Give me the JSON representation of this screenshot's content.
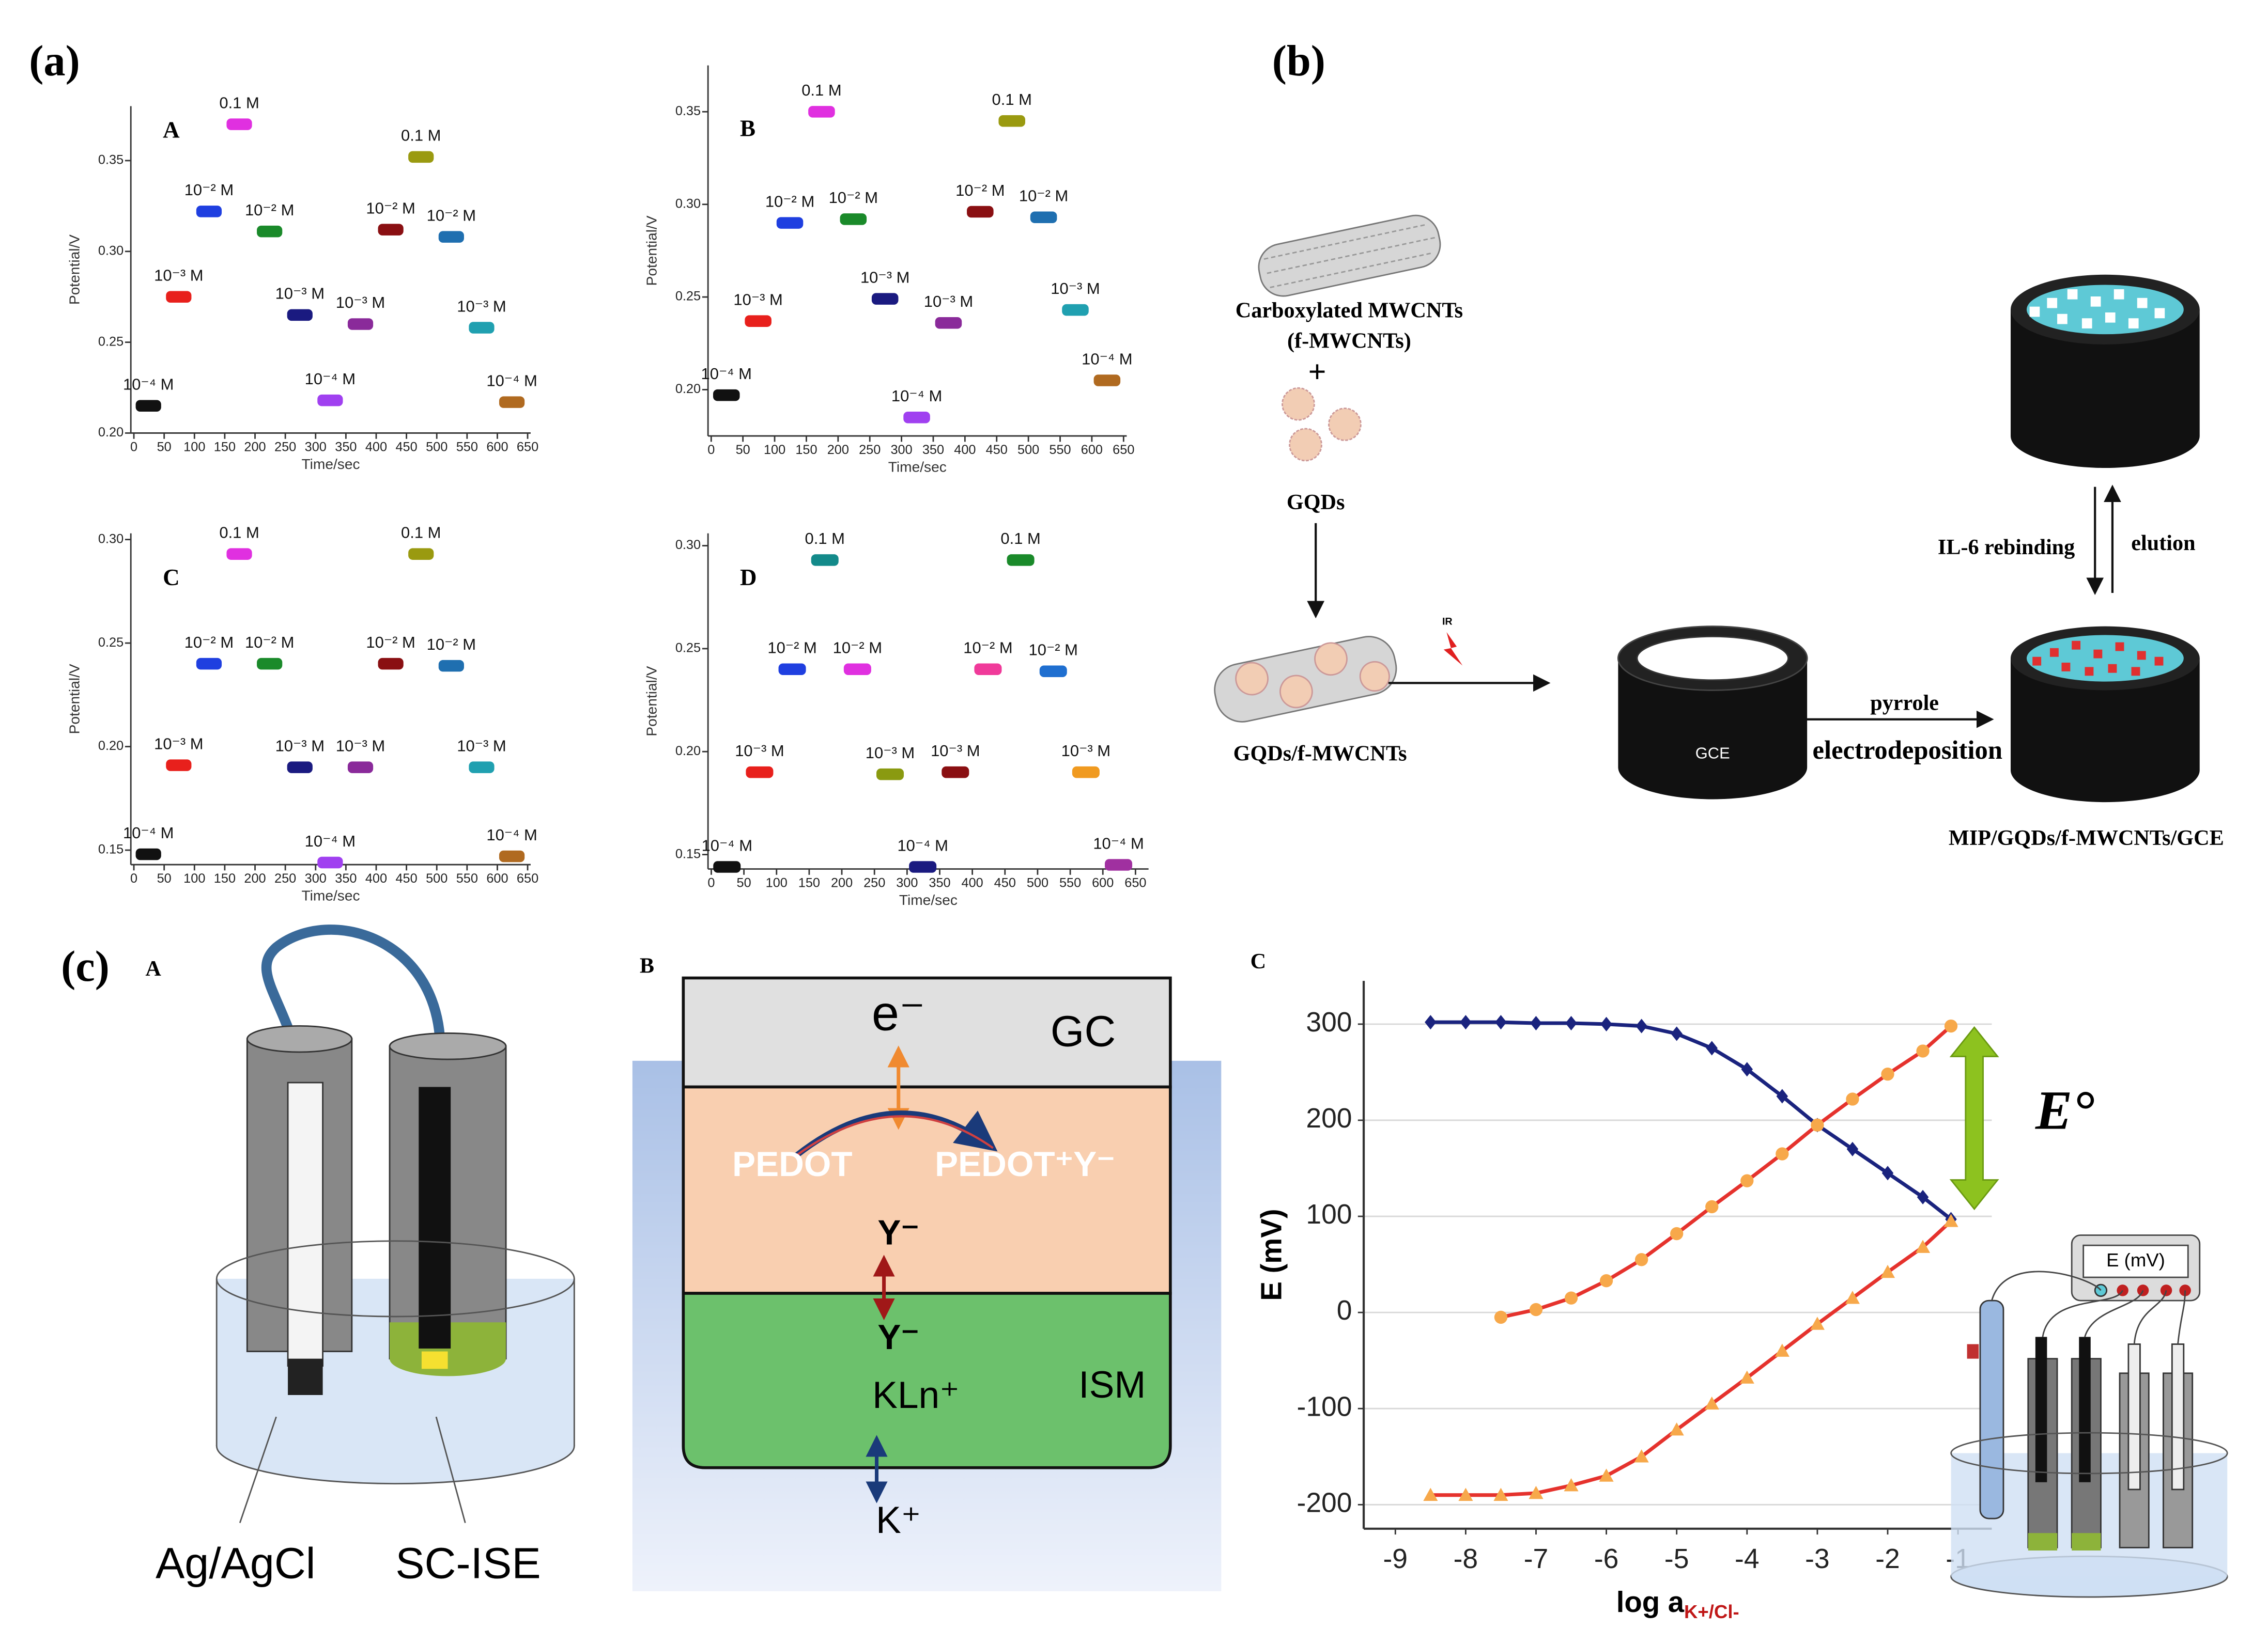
{
  "chart_data": [
    {
      "type": "segment",
      "panel": "A",
      "x_label": "Time/sec",
      "y_label": "Potential/V",
      "xlim": [
        -5,
        655
      ],
      "xticks": [
        0,
        50,
        100,
        150,
        200,
        250,
        300,
        350,
        400,
        450,
        500,
        550,
        600,
        650
      ],
      "ylim": [
        0.2,
        0.38
      ],
      "yticks": [
        {
          "value": 0.2,
          "label": "0.20"
        },
        0.25,
        {
          "value": 0.3,
          "label": "0.30"
        },
        0.35
      ],
      "x": [
        3,
        53,
        103,
        153,
        203,
        253,
        303,
        353,
        403,
        453,
        503,
        553,
        603
      ],
      "x2": [
        45,
        95,
        145,
        195,
        245,
        295,
        345,
        395,
        445,
        495,
        545,
        595,
        645
      ],
      "values": [
        0.215,
        0.275,
        0.322,
        0.37,
        0.311,
        0.265,
        0.218,
        0.26,
        0.312,
        0.352,
        0.308,
        0.258,
        0.217
      ],
      "labels": [
        "10⁻⁴ M",
        "10⁻³ M",
        "10⁻² M",
        "0.1 M",
        "10⁻² M",
        "10⁻³ M",
        "10⁻⁴ M",
        "10⁻³ M",
        "10⁻² M",
        "0.1 M",
        "10⁻² M",
        "10⁻³ M",
        "10⁻⁴ M"
      ],
      "colors": [
        "#111111",
        "#e8201c",
        "#1f3fe0",
        "#e030e0",
        "#1a8a2a",
        "#1a1a80",
        "#a040f0",
        "#8a2a9a",
        "#8a0f12",
        "#9a9a10",
        "#1f6fb0",
        "#20a0b0",
        "#b06a20"
      ]
    },
    {
      "type": "segment",
      "panel": "B",
      "x_label": "Time/sec",
      "y_label": "Potential/V",
      "xlim": [
        -5,
        655
      ],
      "xticks": [
        0,
        50,
        100,
        150,
        200,
        250,
        300,
        350,
        400,
        450,
        500,
        550,
        600,
        650
      ],
      "ylim": [
        0.175,
        0.375
      ],
      "yticks": [
        {
          "value": 0.2,
          "label": "0.20"
        },
        0.25,
        {
          "value": 0.3,
          "label": "0.30"
        },
        0.35
      ],
      "x": [
        3,
        53,
        103,
        153,
        203,
        253,
        303,
        353,
        403,
        453,
        503,
        553,
        603
      ],
      "x2": [
        45,
        95,
        145,
        195,
        245,
        295,
        345,
        395,
        445,
        495,
        545,
        595,
        645
      ],
      "values": [
        0.197,
        0.237,
        0.29,
        0.35,
        0.292,
        0.249,
        0.185,
        0.236,
        0.296,
        0.345,
        0.293,
        0.243,
        0.205
      ],
      "labels": [
        "10⁻⁴ M",
        "10⁻³ M",
        "10⁻² M",
        "0.1 M",
        "10⁻² M",
        "10⁻³ M",
        "10⁻⁴ M",
        "10⁻³ M",
        "10⁻² M",
        "0.1 M",
        "10⁻² M",
        "10⁻³ M",
        "10⁻⁴ M"
      ],
      "colors": [
        "#111111",
        "#e8201c",
        "#1f3fe0",
        "#e030e0",
        "#1a8a2a",
        "#1a1a80",
        "#a040f0",
        "#8a2a9a",
        "#8a0f12",
        "#9a9a10",
        "#1f6fb0",
        "#20a0b0",
        "#b06a20"
      ]
    },
    {
      "type": "segment",
      "panel": "C",
      "x_label": "Time/sec",
      "y_label": "Potential/V",
      "xlim": [
        -5,
        655
      ],
      "xticks": [
        0,
        50,
        100,
        150,
        200,
        250,
        300,
        350,
        400,
        450,
        500,
        550,
        600,
        650
      ],
      "ylim": [
        0.143,
        0.303
      ],
      "yticks": [
        0.15,
        {
          "value": 0.2,
          "label": "0.20"
        },
        0.25,
        {
          "value": 0.3,
          "label": "0.30"
        }
      ],
      "x": [
        3,
        53,
        103,
        153,
        203,
        253,
        303,
        353,
        403,
        453,
        503,
        553,
        603
      ],
      "x2": [
        45,
        95,
        145,
        195,
        245,
        295,
        345,
        395,
        445,
        495,
        545,
        595,
        645
      ],
      "values": [
        0.148,
        0.191,
        0.24,
        0.293,
        0.24,
        0.19,
        0.144,
        0.19,
        0.24,
        0.293,
        0.239,
        0.19,
        0.147
      ],
      "labels": [
        "10⁻⁴ M",
        "10⁻³ M",
        "10⁻² M",
        "0.1 M",
        "10⁻² M",
        "10⁻³ M",
        "10⁻⁴ M",
        "10⁻³ M",
        "10⁻² M",
        "0.1 M",
        "10⁻² M",
        "10⁻³ M",
        "10⁻⁴ M"
      ],
      "colors": [
        "#111111",
        "#e8201c",
        "#1f3fe0",
        "#e030e0",
        "#1a8a2a",
        "#1a1a80",
        "#a040f0",
        "#8a2a9a",
        "#8a0f12",
        "#9a9a10",
        "#1f6fb0",
        "#20a0b0",
        "#b06a20"
      ]
    },
    {
      "type": "segment",
      "panel": "D",
      "x_label": "Time/sec",
      "y_label": "Potential/V",
      "xlim": [
        -5,
        670
      ],
      "xticks": [
        0,
        50,
        100,
        150,
        200,
        250,
        300,
        350,
        400,
        450,
        500,
        550,
        600,
        650
      ],
      "ylim": [
        0.143,
        0.306
      ],
      "yticks": [
        0.15,
        {
          "value": 0.2,
          "label": "0.20"
        },
        0.25,
        {
          "value": 0.3,
          "label": "0.30"
        }
      ],
      "x": [
        3,
        53,
        103,
        153,
        203,
        253,
        303,
        353,
        403,
        453,
        503,
        553,
        603
      ],
      "x2": [
        45,
        95,
        145,
        195,
        245,
        295,
        345,
        395,
        445,
        495,
        545,
        595,
        645
      ],
      "values": [
        0.144,
        0.19,
        0.24,
        0.293,
        0.24,
        0.189,
        0.144,
        0.19,
        0.24,
        0.293,
        0.239,
        0.19,
        0.145
      ],
      "labels": [
        "10⁻⁴ M",
        "10⁻³ M",
        "10⁻² M",
        "0.1 M",
        "10⁻² M",
        "10⁻³ M",
        "10⁻⁴ M",
        "10⁻³ M",
        "10⁻² M",
        "0.1 M",
        "10⁻² M",
        "10⁻³ M",
        "10⁻⁴ M"
      ],
      "colors": [
        "#111111",
        "#e8201c",
        "#1f3fe0",
        "#138a8a",
        "#e030e0",
        "#8a9a10",
        "#1a1a80",
        "#8a0f12",
        "#f03a9a",
        "#1a8a2a",
        "#1f6fd0",
        "#f09a20",
        "#a030a0"
      ]
    },
    {
      "type": "line",
      "panel": "C",
      "x_label": "log a",
      "x_label_sub": "K+/Cl-",
      "y_label": "E (mV)",
      "annotation": "E°",
      "inset_label": "E (mV)",
      "grid": true,
      "xlim": [
        -9.45,
        -0.52
      ],
      "xticks": [
        -9,
        -8,
        -7,
        -6,
        -5,
        -4,
        -3,
        -2,
        -1
      ],
      "ylim": [
        -225,
        345
      ],
      "yticks": [
        -200,
        -100,
        0,
        100,
        200,
        300
      ],
      "series": [
        {
          "color": "#1a237e",
          "marker": "diamond",
          "marker_color": "#1a237e",
          "x": [
            -8.5,
            -8,
            -7.5,
            -7,
            -6.5,
            -6,
            -5.5,
            -5,
            -4.5,
            -4,
            -3.5,
            -3,
            -2.5,
            -2,
            -1.5,
            -1.1
          ],
          "values": [
            302,
            302,
            302,
            301,
            301,
            300,
            298,
            290,
            275,
            253,
            225,
            195,
            170,
            145,
            120,
            97
          ]
        },
        {
          "color": "#e5322d",
          "marker": "circle",
          "marker_color": "#f7a84a",
          "x": [
            -7.5,
            -7,
            -6.5,
            -6,
            -5.5,
            -5,
            -4.5,
            -4,
            -3.5,
            -3,
            -2.5,
            -2,
            -1.5,
            -1.1
          ],
          "values": [
            -5,
            3,
            15,
            33,
            55,
            82,
            110,
            137,
            165,
            195,
            222,
            248,
            272,
            298
          ]
        },
        {
          "color": "#e5322d",
          "marker": "triangle",
          "marker_color": "#f7a84a",
          "x": [
            -8.5,
            -8,
            -7.5,
            -7,
            -6.5,
            -6,
            -5.5,
            -5,
            -4.5,
            -4,
            -3.5,
            -3,
            -2.5,
            -2,
            -1.5,
            -1.1
          ],
          "values": [
            -190,
            -190,
            -190,
            -188,
            -180,
            -170,
            -150,
            -122,
            -95,
            -68,
            -40,
            -12,
            15,
            42,
            68,
            95
          ]
        }
      ]
    }
  ],
  "panel_labels": [
    "(a)",
    "(b)",
    "(c)"
  ],
  "diagram_b": {
    "reagent_1": "Carboxylated MWCNTs",
    "reagent_1_abbr": "(f-MWCNTs)",
    "plus": "+",
    "reagent_2": "GQDs",
    "composite": "GQDs/f-MWCNTs",
    "ir": "IR",
    "electrode": "GCE",
    "step_1": "pyrrole",
    "step_2": "electrodeposition",
    "product": "MIP/GQDs/f-MWCNTs/GCE",
    "rebinding": "IL-6 rebinding",
    "elution": "elution"
  },
  "diagram_c_a": {
    "panel": "A",
    "reference": "Ag/AgCl",
    "sensor": "SC-ISE"
  },
  "diagram_c_b": {
    "panel": "B",
    "electron": "e⁻",
    "gc": "GC",
    "pedot": "PEDOT",
    "pedot_oxidized": "PEDOT⁺Y⁻",
    "anion_1": "Y⁻",
    "anion_2": "Y⁻",
    "complex": "KLn⁺",
    "ism": "ISM",
    "cation": "K⁺"
  }
}
